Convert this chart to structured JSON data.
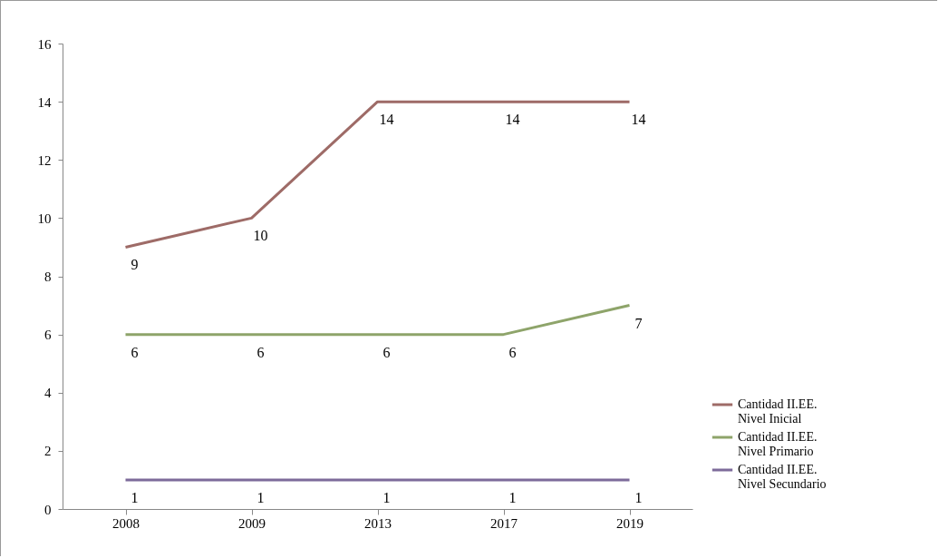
{
  "chart_data": {
    "type": "line",
    "categories": [
      "2008",
      "2009",
      "2013",
      "2017",
      "2019"
    ],
    "series": [
      {
        "name": "Cantidad II.EE. Nivel Inicial",
        "color": "#9e6b67",
        "values": [
          9,
          10,
          14,
          14,
          14
        ]
      },
      {
        "name": "Cantidad II.EE. Nivel Primario",
        "color": "#8ea46a",
        "values": [
          6,
          6,
          6,
          6,
          7
        ]
      },
      {
        "name": "Cantidad II.EE. Nivel Secundario",
        "color": "#7d6b9a",
        "values": [
          1,
          1,
          1,
          1,
          1
        ]
      }
    ],
    "ylim": [
      0,
      16
    ],
    "yticks": [
      0,
      2,
      4,
      6,
      8,
      10,
      12,
      14,
      16
    ],
    "grid": false,
    "legend": "right",
    "data_labels": true,
    "marker": "none",
    "line_style": "solid"
  }
}
